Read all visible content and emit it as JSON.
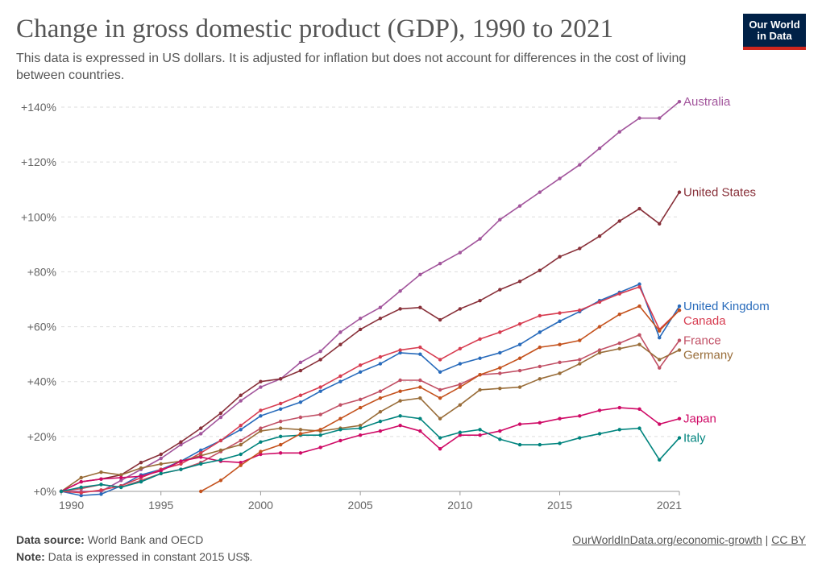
{
  "header": {
    "title": "Change in gross domestic product (GDP), 1990 to 2021",
    "subtitle": "This data is expressed in US dollars. It is adjusted for inflation but does not account for differences in the cost of living between countries.",
    "logo_line1": "Our World",
    "logo_line2": "in Data"
  },
  "footer": {
    "source_label": "Data source:",
    "source_text": "World Bank and OECD",
    "note_label": "Note:",
    "note_text": "Data is expressed in constant 2015 US$.",
    "link_text": "OurWorldInData.org/economic-growth",
    "separator": "|",
    "license_text": "CC BY"
  },
  "chart_data": {
    "type": "line",
    "title": "Change in gross domestic product (GDP), 1990 to 2021",
    "xlabel": "",
    "ylabel": "",
    "xlim": [
      1990,
      2021
    ],
    "ylim": [
      0,
      140
    ],
    "x_ticks": [
      1990,
      1995,
      2000,
      2005,
      2010,
      2015,
      2021
    ],
    "y_ticks": [
      0,
      20,
      40,
      60,
      80,
      100,
      120,
      140
    ],
    "y_tick_labels": [
      "+0%",
      "+20%",
      "+40%",
      "+60%",
      "+80%",
      "+100%",
      "+120%",
      "+140%"
    ],
    "grid": "horizontal dashed",
    "legend": "inline labels at right end of lines",
    "series": [
      {
        "name": "Australia",
        "color": "#a2559c",
        "start": 1990,
        "values": [
          0,
          0,
          0,
          4,
          8,
          12,
          17,
          21,
          27,
          33,
          38,
          41,
          47,
          51,
          58,
          63,
          67,
          73,
          79,
          83,
          87,
          92,
          99,
          104,
          109,
          114,
          119,
          125,
          131,
          136,
          136,
          142
        ]
      },
      {
        "name": "United States",
        "color": "#883039",
        "start": 1990,
        "values": [
          0,
          3.5,
          4.5,
          6,
          10.5,
          13.5,
          18,
          23,
          28.5,
          35,
          40,
          41,
          44,
          48,
          53.5,
          59,
          63,
          66.5,
          67,
          62.5,
          66.5,
          69.5,
          73.5,
          76.5,
          80.5,
          85.5,
          88.5,
          93,
          98.5,
          103,
          97.5,
          109
        ]
      },
      {
        "name": "United Kingdom",
        "color": "#286bbb",
        "start": 1990,
        "values": [
          0,
          -1.5,
          -1,
          2,
          6,
          8,
          11,
          15,
          18.5,
          22.5,
          27.5,
          30,
          32.5,
          36.5,
          40,
          43.5,
          46.5,
          50.5,
          50,
          43.5,
          46.5,
          48.5,
          50.5,
          53.5,
          58,
          62,
          65.5,
          69.5,
          72.5,
          75.5,
          56,
          67.5
        ]
      },
      {
        "name": "Canada",
        "color": "#d73c50",
        "start": 1990,
        "values": [
          0,
          -0.5,
          0.5,
          2,
          5,
          8,
          10,
          14,
          18.5,
          24,
          29.5,
          32,
          35,
          38,
          42,
          46,
          49,
          51.5,
          52.5,
          48,
          52,
          55.5,
          58,
          61,
          64,
          65,
          66,
          69,
          72,
          74.5,
          59,
          66
        ]
      },
      {
        "name": "France",
        "color": "#c15065",
        "start": 1990,
        "values": [
          0,
          1,
          2.5,
          1.5,
          4,
          6.5,
          8,
          10.5,
          14.5,
          18.5,
          23,
          25.5,
          27,
          28,
          31.5,
          33.5,
          36.5,
          40.5,
          40.5,
          37,
          39,
          42.5,
          43,
          44,
          45.5,
          47,
          48,
          51.5,
          54,
          57,
          45,
          55
        ]
      },
      {
        "name": "Germany",
        "color": "#996d39",
        "start": 1990,
        "values": [
          0,
          5,
          7,
          6,
          8.5,
          10,
          11,
          13,
          15,
          17,
          22,
          23,
          22.5,
          22,
          23,
          24,
          29,
          33,
          34,
          26.5,
          31.5,
          37,
          37.5,
          38,
          41,
          43,
          46.5,
          50.5,
          52,
          53.5,
          48,
          51.5
        ]
      },
      {
        "name": "Japan",
        "color": "#cf0a66",
        "start": 1990,
        "values": [
          0,
          3.5,
          4.5,
          5,
          5.5,
          7.5,
          11,
          12.5,
          11,
          10.5,
          13.5,
          14,
          14,
          16,
          18.5,
          20.5,
          22,
          24,
          22,
          15.5,
          20.5,
          20.5,
          22,
          24.5,
          25,
          26.5,
          27.5,
          29.5,
          30.5,
          30,
          24.5,
          26.5
        ]
      },
      {
        "name": "Italy",
        "color": "#00847e",
        "start": 1990,
        "values": [
          0,
          1.5,
          2.5,
          1.5,
          3.5,
          6.5,
          8,
          10,
          11.5,
          13.5,
          18,
          20,
          20.5,
          20.5,
          22.5,
          23,
          25.5,
          27.5,
          26.5,
          19.5,
          21.5,
          22.5,
          19,
          17,
          17,
          17.5,
          19.5,
          21,
          22.5,
          23,
          11.5,
          19.5
        ]
      },
      {
        "name": "",
        "color": "#c4521d",
        "start": 1997,
        "values": [
          0,
          4,
          9.5,
          14.5,
          17,
          21,
          22.5,
          26.5,
          30.5,
          34,
          36.5,
          38,
          34,
          38,
          42.5,
          45,
          48.5,
          52.5,
          53.5,
          55,
          60,
          64.5,
          67.5,
          58.5,
          66
        ]
      }
    ]
  }
}
